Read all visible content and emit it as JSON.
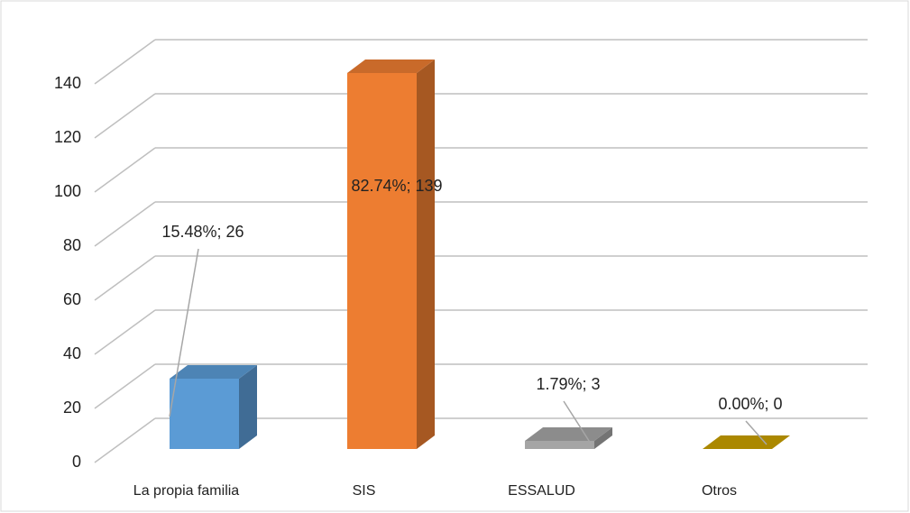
{
  "chart_data": {
    "type": "bar3d",
    "categories": [
      "La propia familia",
      "SIS",
      "ESSALUD",
      "Otros"
    ],
    "values": [
      26,
      139,
      3,
      0
    ],
    "value_labels": [
      "15.48%; 26",
      "82.74%; 139",
      "1.79%; 3",
      "0.00%; 0"
    ],
    "colors": [
      "#5b9bd5",
      "#ed7d31",
      "#a5a5a5",
      "#c9a000"
    ],
    "ylim": [
      0,
      140
    ],
    "yticks": [
      0,
      20,
      40,
      60,
      80,
      100,
      120,
      140
    ],
    "grid": true
  }
}
